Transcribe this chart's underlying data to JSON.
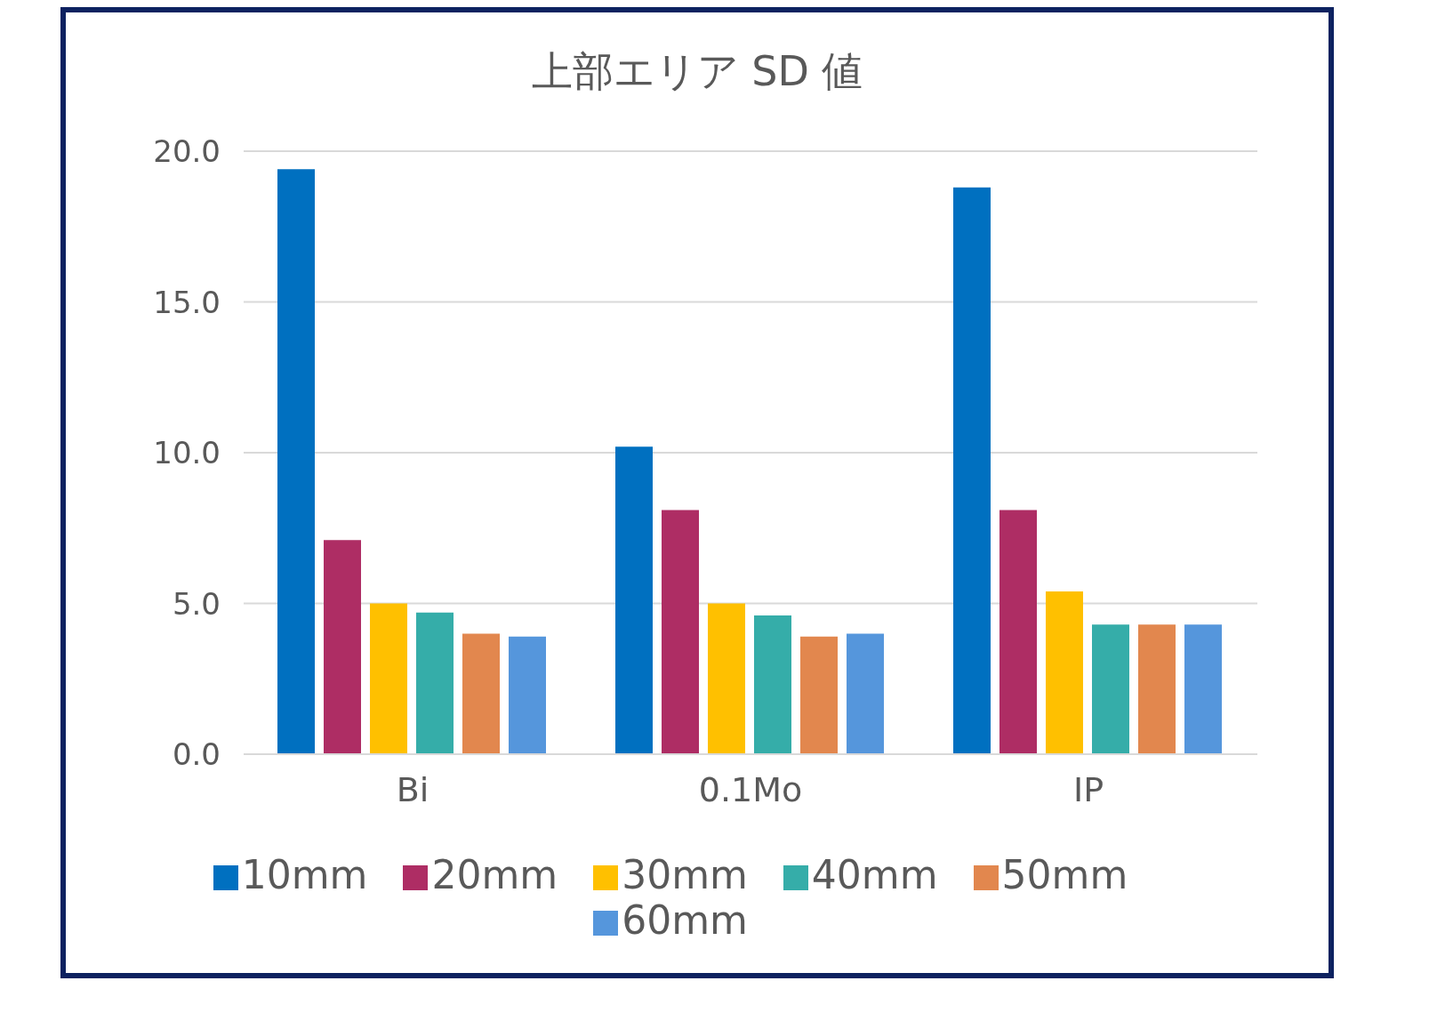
{
  "chart_data": {
    "type": "bar",
    "title": "上部エリア SD 値",
    "categories": [
      "Bi",
      "0.1Mo",
      "IP"
    ],
    "series": [
      {
        "name": "10mm",
        "color": "#0070c0",
        "values": [
          19.4,
          10.2,
          18.8
        ]
      },
      {
        "name": "20mm",
        "color": "#ae2d64",
        "values": [
          7.1,
          8.1,
          8.1
        ]
      },
      {
        "name": "30mm",
        "color": "#ffc000",
        "values": [
          5.0,
          5.0,
          5.4
        ]
      },
      {
        "name": "40mm",
        "color": "#35ada9",
        "values": [
          4.7,
          4.6,
          4.3
        ]
      },
      {
        "name": "50mm",
        "color": "#e2874e",
        "values": [
          4.0,
          3.9,
          4.3
        ]
      },
      {
        "name": "60mm",
        "color": "#5596dc",
        "values": [
          3.9,
          4.0,
          4.3
        ]
      }
    ],
    "ylim": [
      0,
      20
    ],
    "yticks": [
      {
        "value": 0,
        "label": "0.0"
      },
      {
        "value": 5,
        "label": "5.0"
      },
      {
        "value": 10,
        "label": "10.0"
      },
      {
        "value": 15,
        "label": "15.0"
      },
      {
        "value": 20,
        "label": "20.0"
      }
    ],
    "grid": "y",
    "legend": "bottom"
  }
}
